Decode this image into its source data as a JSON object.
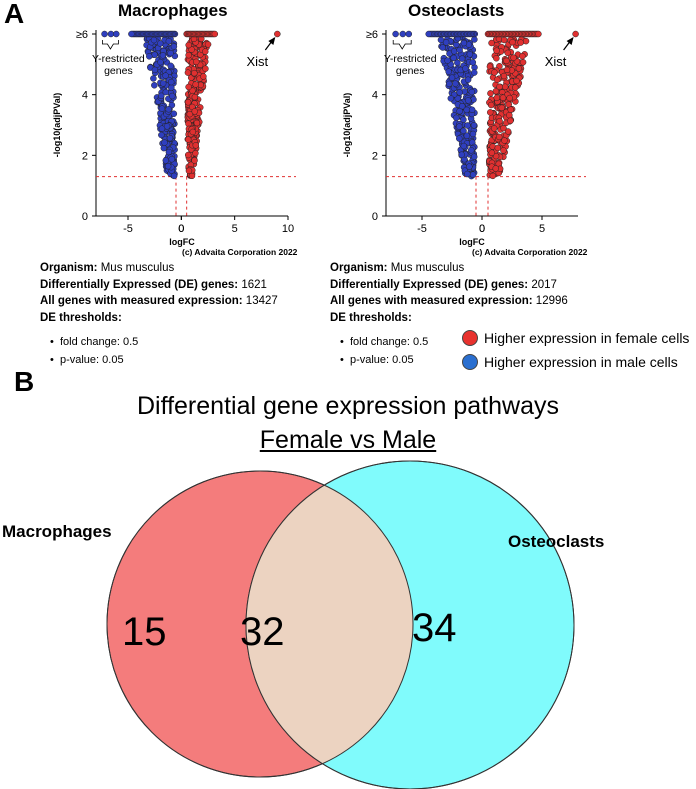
{
  "panel_a_letter": "A",
  "panel_b_letter": "B",
  "chart_data": [
    {
      "type": "scatter",
      "title": "Macrophages",
      "xlabel": "logFC",
      "ylabel": "-log10(adjPVal)",
      "xlim": [
        -8,
        10
      ],
      "ylim": [
        0,
        6
      ],
      "xticks": [
        "-5",
        "0",
        "5",
        "10"
      ],
      "yticks": [
        "0",
        "2",
        "4",
        "≥6"
      ],
      "threshold_y": 1.3,
      "threshold_x": [
        -0.5,
        0.5
      ],
      "annotation_xist": "Xist",
      "annotation_y": "Y-restricted\ngenes",
      "credit": "(c) Advaita Corporation 2022",
      "series": [
        {
          "name": "Higher expression in female cells",
          "color": "#e03030",
          "spread_range": [
            0.6,
            2.6
          ],
          "capped_range": [
            0.5,
            3.2
          ]
        },
        {
          "name": "Higher expression in male cells",
          "color": "#2f3fbf",
          "spread_range": [
            -3.4,
            -0.6
          ],
          "capped_range": [
            -4.8,
            -0.6
          ]
        }
      ],
      "outliers": [
        {
          "x": 9.0,
          "y": 6,
          "series": "female"
        },
        {
          "x": -7.2,
          "y": 6,
          "series": "male"
        },
        {
          "x": -6.6,
          "y": 6,
          "series": "male"
        },
        {
          "x": -6.1,
          "y": 6,
          "series": "male"
        }
      ]
    },
    {
      "type": "scatter",
      "title": "Osteoclasts",
      "xlabel": "logFC",
      "ylabel": "-log10(adjPVal)",
      "xlim": [
        -8,
        8
      ],
      "ylim": [
        0,
        6
      ],
      "xticks": [
        "-5",
        "0",
        "5"
      ],
      "yticks": [
        "0",
        "2",
        "4",
        "≥6"
      ],
      "threshold_y": 1.3,
      "threshold_x": [
        -0.5,
        0.5
      ],
      "annotation_xist": "Xist",
      "annotation_y": "Y-restricted\ngenes",
      "credit": "(c) Advaita Corporation 2022",
      "series": [
        {
          "name": "Higher expression in female cells",
          "color": "#e03030",
          "spread_range": [
            0.6,
            4.0
          ],
          "capped_range": [
            0.5,
            4.8
          ]
        },
        {
          "name": "Higher expression in male cells",
          "color": "#2f3fbf",
          "spread_range": [
            -3.6,
            -0.6
          ],
          "capped_range": [
            -4.5,
            -0.6
          ]
        }
      ],
      "outliers": [
        {
          "x": 7.8,
          "y": 6,
          "series": "female"
        },
        {
          "x": -7.2,
          "y": 6,
          "series": "male"
        },
        {
          "x": -6.6,
          "y": 6,
          "series": "male"
        },
        {
          "x": -6.1,
          "y": 6,
          "series": "male"
        }
      ]
    }
  ],
  "macrophages_info": {
    "organism_label": "Organism:",
    "organism_value": "Mus musculus",
    "de_label": "Differentially Expressed (DE) genes:",
    "de_value": "1621",
    "all_label": "All genes with measured expression:",
    "all_value": "13427",
    "thr_label": "DE thresholds:",
    "fc": "fold change: 0.5",
    "pv": "p-value: 0.05"
  },
  "osteoclasts_info": {
    "organism_label": "Organism:",
    "organism_value": "Mus musculus",
    "de_label": "Differentially Expressed (DE) genes:",
    "de_value": "2017",
    "all_label": "All genes with measured expression:",
    "all_value": "12996",
    "thr_label": "DE thresholds:",
    "fc": "fold change: 0.5",
    "pv": "p-value: 0.05"
  },
  "legend": {
    "female": "Higher expression in female cells",
    "male": "Higher expression in male cells",
    "female_color": "#e8322e",
    "male_color": "#2a6fd0"
  },
  "venn": {
    "title": "Differential gene expression pathways",
    "subtitle": "Female vs Male",
    "left_label": "Macrophages",
    "right_label": "Osteoclasts",
    "left_only": "15",
    "overlap": "32",
    "right_only": "34",
    "left_color": "#f47c7c",
    "right_color": "#80fbfc",
    "overlap_color": "#ecd3c1"
  }
}
